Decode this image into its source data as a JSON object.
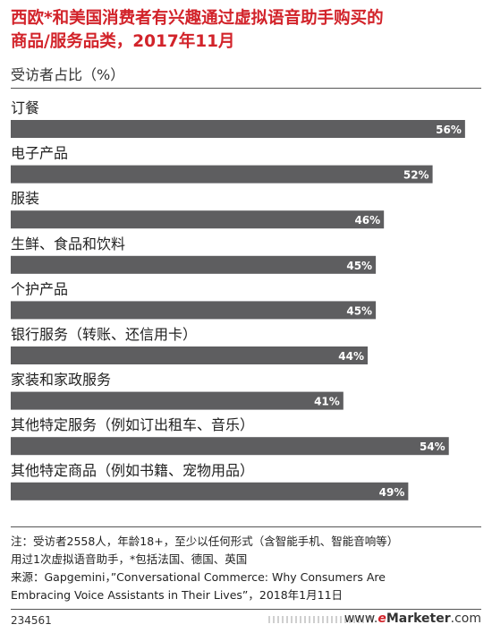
{
  "title_line1": "西欧*和美国消费者有兴趣通过虚拟语音助手购买的",
  "title_line2": "商品/服务品类，2017年11月",
  "subtitle": "受访者占比（%）",
  "notes": {
    "line1": "注：受访者2558人，年龄18+，至少以任何形式（含智能手机、智能音响等）",
    "line2": "用过1次虚拟语音助手，*包括法国、德国、英国",
    "line3": "来源：Gapgemini，”Conversational Commerce: Why Consumers Are",
    "line4": "Embracing Voice Assistants in Their Lives”，2018年1月11日"
  },
  "footer_id": "234561",
  "brand": {
    "prefix": "www.",
    "e": "e",
    "name": "Marketer",
    "suffix": ".com"
  },
  "colors": {
    "title": "#d2232a",
    "bar": "#5e5e60",
    "value_text": "#ffffff"
  },
  "chart_data": {
    "type": "bar",
    "orientation": "horizontal",
    "categories": [
      "订餐",
      "电子产品",
      "服装",
      "生鲜、食品和饮料",
      "个护产品",
      "银行服务（转账、还信用卡）",
      "家装和家政服务",
      "其他特定服务（例如订出租车、音乐）",
      "其他特定商品（例如书籍、宠物用品）"
    ],
    "values": [
      56,
      52,
      46,
      45,
      45,
      44,
      41,
      54,
      49
    ],
    "value_labels": [
      "56%",
      "52%",
      "46%",
      "45%",
      "45%",
      "44%",
      "41%",
      "54%",
      "49%"
    ],
    "ylabel": "受访者占比（%）",
    "xlim": [
      0,
      58
    ]
  }
}
